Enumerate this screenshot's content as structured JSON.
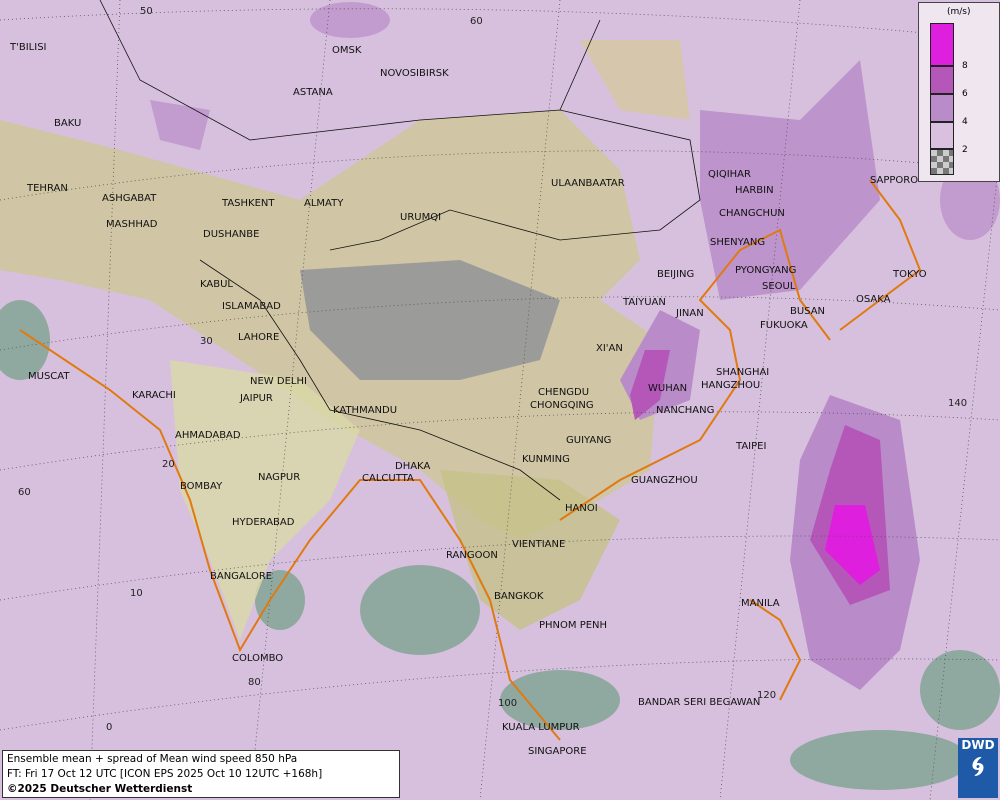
{
  "title": "Ensemble mean + spread of Mean wind speed 850 hPa",
  "forecast_time": "FT: Fri 17 Oct 12 UTC [ICON EPS 2025 Oct 10 12UTC +168h]",
  "copyright": "©2025 Deutscher Wetterdienst",
  "logo": "DWD",
  "legend": {
    "unit": "(m/s)",
    "ticks": [
      "8",
      "6",
      "4",
      "2"
    ],
    "colors": [
      "#de1fde",
      "#b556b9",
      "#b98cc9",
      "#d8c0de",
      "#b0b0b0"
    ]
  },
  "grid_labels": [
    "50",
    "60",
    "30",
    "20",
    "10",
    "0",
    "60",
    "80",
    "100",
    "120",
    "140"
  ],
  "cities": [
    "OMSK",
    "NOVOSIBIRSK",
    "ASTANA",
    "T'BILISI",
    "BAKU",
    "TEHRAN",
    "ASHGABAT",
    "MASHHAD",
    "TASHKENT",
    "ALMATY",
    "DUSHANBE",
    "URUMQI",
    "ULAANBAATAR",
    "QIQIHAR",
    "HARBIN",
    "CHANGCHUN",
    "SHENYANG",
    "SAPPORO",
    "BEIJING",
    "PYONGYANG",
    "SEOUL",
    "TOKYO",
    "OSAKA",
    "BUSAN",
    "FUKUOKA",
    "TAIYUAN",
    "JINAN",
    "KABUL",
    "ISLAMABAD",
    "LAHORE",
    "XI'AN",
    "NEW DELHI",
    "JAIPUR",
    "SHANGHAI",
    "WUHAN",
    "HANGZHOU",
    "CHENGDU",
    "CHONGQING",
    "KATHMANDU",
    "NANCHANG",
    "MUSCAT",
    "KARACHI",
    "AHMADABAD",
    "GUIYANG",
    "TAIPEI",
    "KUNMING",
    "DHAKA",
    "CALCUTTA",
    "NAGPUR",
    "BOMBAY",
    "GUANGZHOU",
    "HANOI",
    "HYDERABAD",
    "VIENTIANE",
    "RANGOON",
    "BANGALORE",
    "MANILA",
    "BANGKOK",
    "PHNOM PENH",
    "COLOMBO",
    "BANDAR SERI BEGAWAN",
    "KUALA LUMPUR",
    "SINGAPORE"
  ]
}
